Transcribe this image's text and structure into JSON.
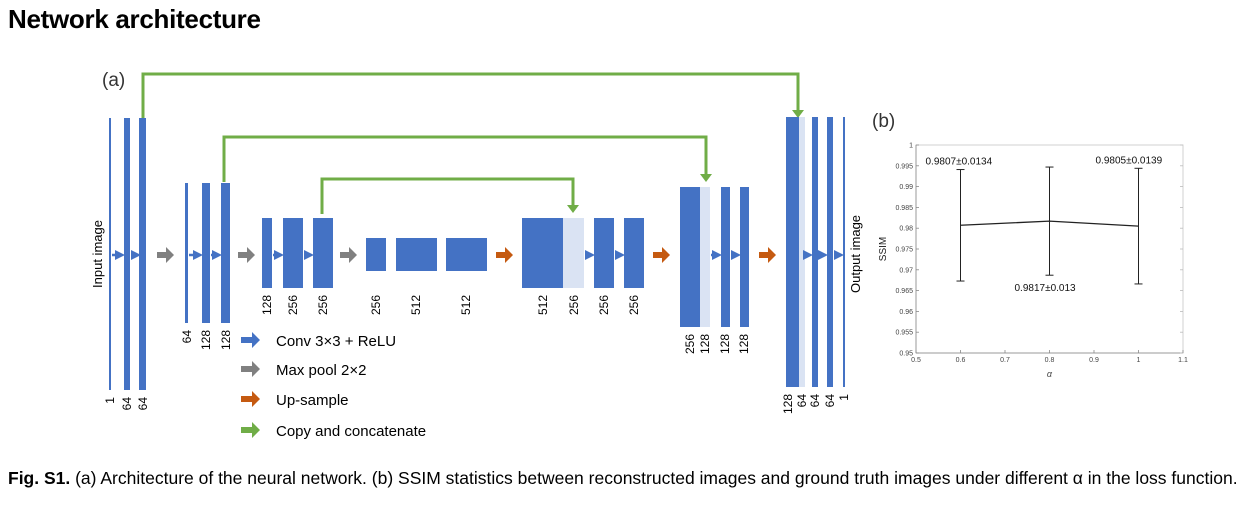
{
  "page": {
    "heading": "Network architecture",
    "caption_label": "Fig. S1.",
    "caption_text": " (a) Architecture of the neural network. (b) SSIM statistics between reconstructed images and ground truth images under different α in the loss function."
  },
  "panel_a": {
    "label": "(a)",
    "input_label": "Input image",
    "output_label": "Output image",
    "colors": {
      "conv": "#4472C4",
      "concat": "#DAE3F3",
      "pool": "#808080",
      "upsample": "#C55A11",
      "copy": "#70AD47"
    },
    "channel_labels": {
      "level1_enc": [
        "1",
        "64",
        "64"
      ],
      "level2_enc": [
        "64",
        "128",
        "128"
      ],
      "level3_enc": [
        "128",
        "256",
        "256"
      ],
      "level4": [
        "256",
        "512",
        "512"
      ],
      "level3_dec": [
        "512",
        "256",
        "256",
        "256"
      ],
      "level2_dec": [
        "256",
        "128",
        "128",
        "128"
      ],
      "level1_dec": [
        "128",
        "64",
        "64",
        "64",
        "1"
      ]
    },
    "legend": [
      {
        "icon": "blue-arrow-icon",
        "label": "Conv 3×3 + ReLU"
      },
      {
        "icon": "gray-arrow-icon",
        "label": "Max pool 2×2"
      },
      {
        "icon": "orange-arrow-icon",
        "label": "Up-sample"
      },
      {
        "icon": "green-arrow-icon",
        "label": "Copy and concatenate"
      }
    ]
  },
  "panel_b": {
    "label": "(b)"
  },
  "chart_data": {
    "type": "line",
    "x": [
      0.6,
      0.8,
      1.0
    ],
    "y": [
      0.9807,
      0.9817,
      0.9805
    ],
    "errors": [
      0.0134,
      0.013,
      0.0139
    ],
    "data_labels": [
      "0.9807±0.0134",
      "0.9817±0.013",
      "0.9805±0.0139"
    ],
    "xlabel": "α",
    "ylabel": "SSIM",
    "xlim": [
      0.5,
      1.1
    ],
    "ylim": [
      0.95,
      1.0
    ],
    "xticks": [
      "0.5",
      "0.6",
      "0.7",
      "0.8",
      "0.9",
      "1",
      "1.1"
    ],
    "yticks": [
      "0.95",
      "0.955",
      "0.96",
      "0.965",
      "0.97",
      "0.975",
      "0.98",
      "0.985",
      "0.99",
      "0.995",
      "1"
    ],
    "grid": false
  }
}
